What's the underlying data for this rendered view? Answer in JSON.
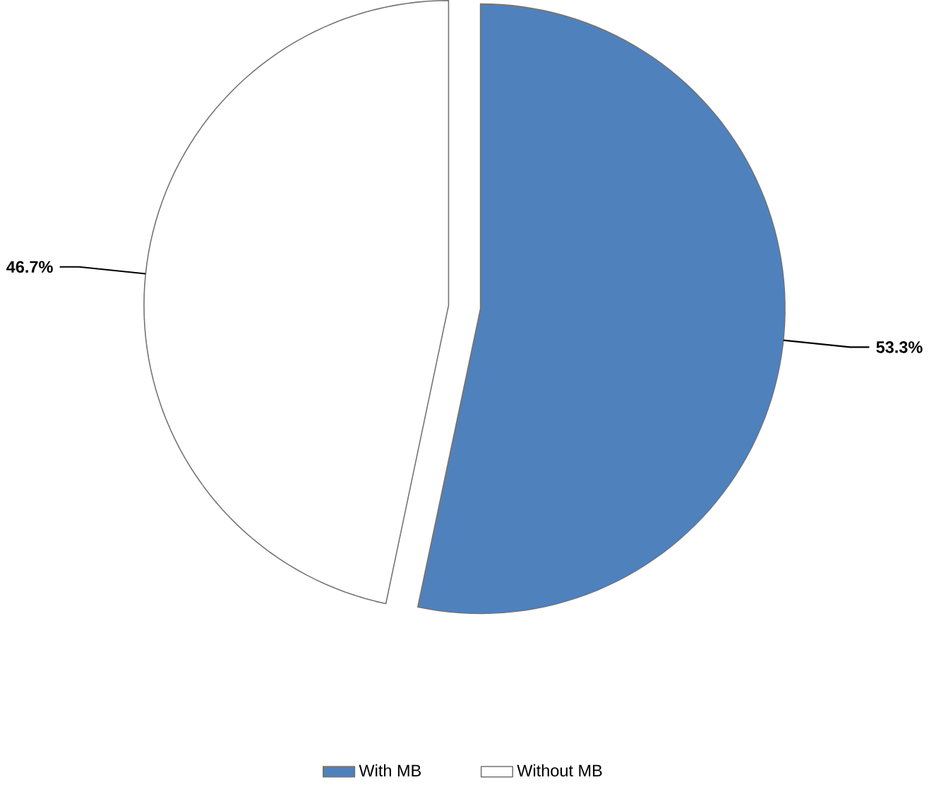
{
  "chart_data": {
    "type": "pie",
    "categories": [
      "With MB",
      "Without MB"
    ],
    "values": [
      53.3,
      46.7
    ],
    "value_labels": [
      "53.3%",
      "46.7%"
    ],
    "colors": [
      "#4f81bd",
      "#ffffff"
    ],
    "legend": "bottom"
  }
}
